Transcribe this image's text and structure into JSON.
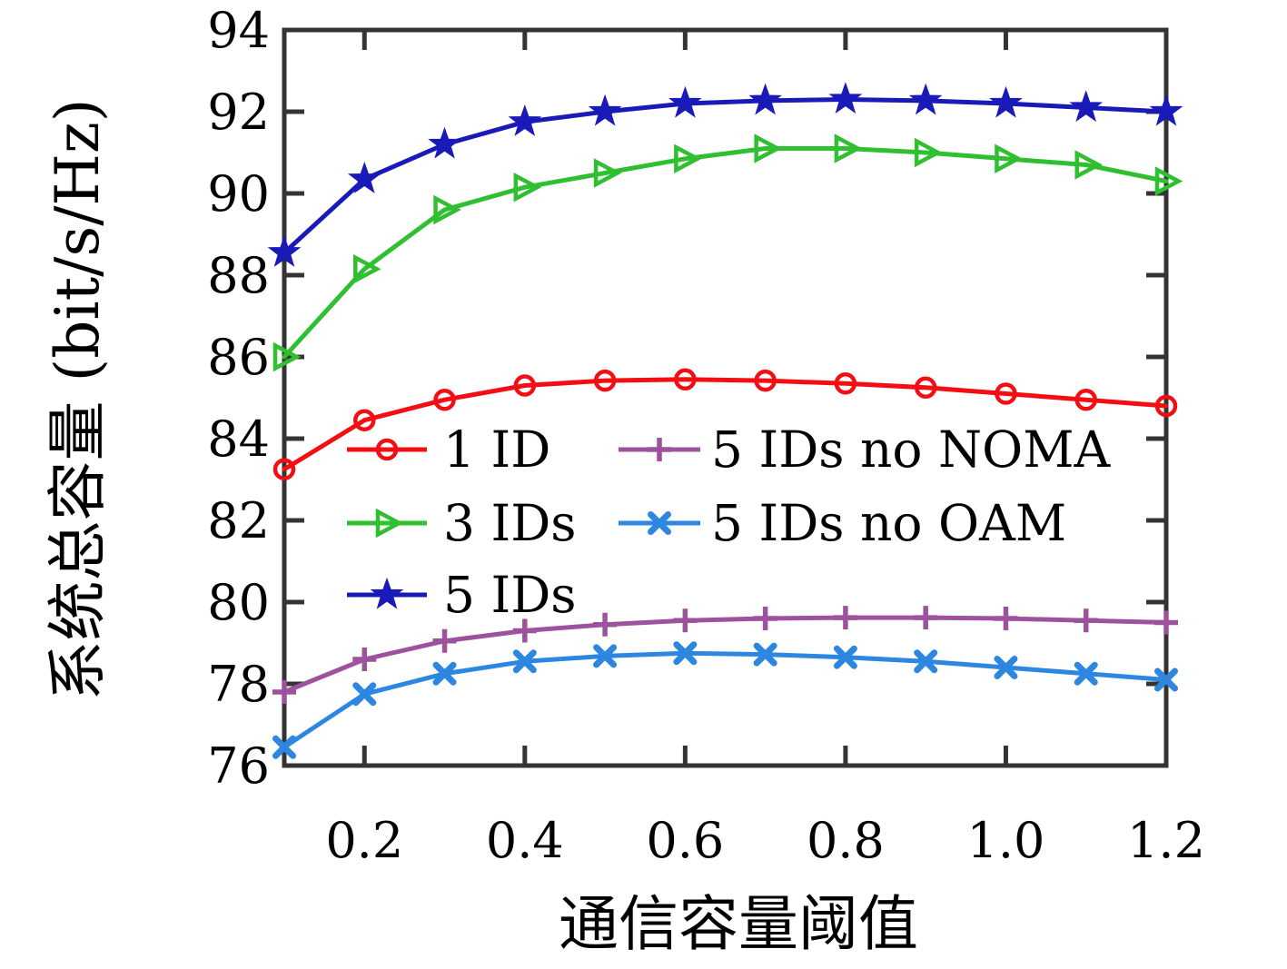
{
  "chart_data": {
    "type": "line",
    "title": "",
    "xlabel": "通信容量阈值",
    "ylabel": "系统总容量 (bit/s/Hz)",
    "xlim": [
      0.1,
      1.2
    ],
    "ylim": [
      76,
      94
    ],
    "x": [
      0.1,
      0.2,
      0.3,
      0.4,
      0.5,
      0.6,
      0.7,
      0.8,
      0.9,
      1.0,
      1.1,
      1.2
    ],
    "xticks": [
      0.2,
      0.4,
      0.6,
      0.8,
      1.0,
      1.2
    ],
    "xtick_labels": [
      "0.2",
      "0.4",
      "0.6",
      "0.8",
      "1.0",
      "1.2"
    ],
    "yticks": [
      76,
      78,
      80,
      82,
      84,
      86,
      88,
      90,
      92,
      94
    ],
    "ytick_labels": [
      "76",
      "78",
      "80",
      "82",
      "84",
      "86",
      "88",
      "90",
      "92",
      "94"
    ],
    "grid": false,
    "frame_color": "#343434",
    "legend_position": "inside middle-left, two columns, no box",
    "series": [
      {
        "name": "1 ID",
        "color": "#f20e12",
        "marker": "circle",
        "values": [
          83.25,
          84.45,
          84.95,
          85.3,
          85.42,
          85.45,
          85.42,
          85.35,
          85.25,
          85.1,
          84.95,
          84.8
        ]
      },
      {
        "name": "3 IDs",
        "color": "#30bf30",
        "marker": "triangle-right",
        "values": [
          86.0,
          88.15,
          89.6,
          90.15,
          90.5,
          90.85,
          91.1,
          91.1,
          91.0,
          90.85,
          90.7,
          90.3
        ]
      },
      {
        "name": "5 IDs",
        "color": "#1a1ab8",
        "marker": "star",
        "values": [
          88.55,
          90.35,
          91.2,
          91.75,
          92.0,
          92.2,
          92.27,
          92.3,
          92.27,
          92.2,
          92.1,
          92.0
        ]
      },
      {
        "name": "5 IDs no NOMA",
        "color": "#9c529c",
        "marker": "plus",
        "values": [
          77.8,
          78.6,
          79.05,
          79.3,
          79.45,
          79.55,
          79.6,
          79.62,
          79.62,
          79.6,
          79.55,
          79.5
        ]
      },
      {
        "name": "5 IDs no OAM",
        "color": "#2d87e0",
        "marker": "x",
        "values": [
          76.45,
          77.75,
          78.25,
          78.55,
          78.68,
          78.75,
          78.72,
          78.65,
          78.55,
          78.4,
          78.25,
          78.1
        ]
      }
    ],
    "legend_columns": [
      [
        0,
        1,
        2
      ],
      [
        3,
        4
      ]
    ]
  }
}
